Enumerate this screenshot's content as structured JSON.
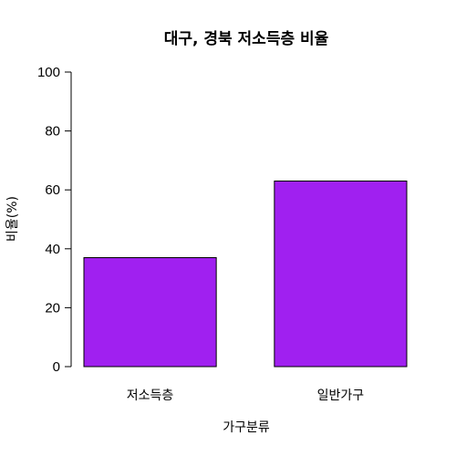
{
  "chart_data": {
    "type": "bar",
    "title": "대구, 경북 저소득층 비율",
    "xlabel": "가구분류",
    "ylabel": "비율(%)",
    "categories": [
      "저소득층",
      "일반가구"
    ],
    "values": [
      37,
      63
    ],
    "ylim": [
      0,
      100
    ],
    "yticks": [
      0,
      20,
      40,
      60,
      80,
      100
    ],
    "bar_color": "#A020F0",
    "grid": false,
    "legend": "none"
  }
}
